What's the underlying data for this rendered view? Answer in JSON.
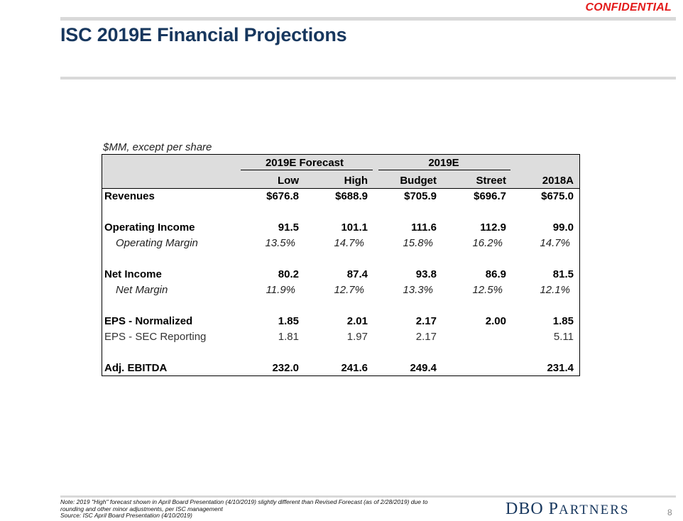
{
  "header": {
    "confidential_label": "CONFIDENTIAL",
    "title": "ISC 2019E Financial Projections"
  },
  "table": {
    "units_label": "$MM, except per share",
    "group_headers": [
      "2019E Forecast",
      "2019E"
    ],
    "columns": [
      "Low",
      "High",
      "Budget",
      "Street",
      "2018A"
    ],
    "rows": [
      {
        "label": "Revenues",
        "style": "bold",
        "values": [
          "$676.8",
          "$688.9",
          "$705.9",
          "$696.7",
          "$675.0"
        ]
      },
      {
        "label": "Operating Income",
        "style": "bold",
        "values": [
          "91.5",
          "101.1",
          "111.6",
          "112.9",
          "99.0"
        ]
      },
      {
        "label": "Operating Margin",
        "style": "italic",
        "values": [
          "13.5%",
          "14.7%",
          "15.8%",
          "16.2%",
          "14.7%"
        ]
      },
      {
        "label": "Net Income",
        "style": "bold",
        "values": [
          "80.2",
          "87.4",
          "93.8",
          "86.9",
          "81.5"
        ]
      },
      {
        "label": "Net Margin",
        "style": "italic",
        "values": [
          "11.9%",
          "12.7%",
          "13.3%",
          "12.5%",
          "12.1%"
        ]
      },
      {
        "label": "EPS - Normalized",
        "style": "bold",
        "values": [
          "1.85",
          "2.01",
          "2.17",
          "2.00",
          "1.85"
        ]
      },
      {
        "label": "EPS - SEC Reporting",
        "style": "regular",
        "values": [
          "1.81",
          "1.97",
          "2.17",
          "",
          "5.11"
        ]
      },
      {
        "label": "Adj. EBITDA",
        "style": "bold",
        "values": [
          "232.0",
          "241.6",
          "249.4",
          "",
          "231.4"
        ]
      }
    ]
  },
  "footer": {
    "note_line1": "Note: 2019 \"High\" forecast shown in April Board Presentation (4/10/2019) slightly different than Revised Forecast (as of 2/28/2019) due to",
    "note_line2": "rounding and other minor adjustments, per ISC management",
    "source": "Source: ISC April Board Presentation (4/10/2019)",
    "logo_initials": "DBO",
    "logo_p": "P",
    "logo_rest": "ARTNERS",
    "page_number": "8"
  },
  "colors": {
    "title": "#17375e",
    "confidential": "#e31b1b",
    "header_fill": "#dddddd",
    "rule": "#d9d9d9"
  }
}
